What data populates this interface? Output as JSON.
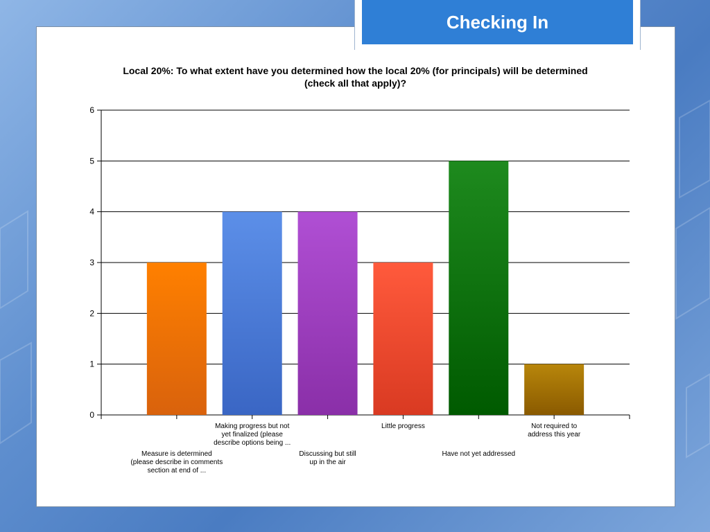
{
  "slide": {
    "title": "Checking In"
  },
  "chart_data": {
    "type": "bar",
    "title": "Local 20%: To what extent have you determined how the local 20% (for principals) will be determined (check all that apply)?",
    "xlabel": "",
    "ylabel": "",
    "ylim": [
      0,
      6
    ],
    "yticks": [
      "0",
      "1",
      "2",
      "3",
      "4",
      "5",
      "6"
    ],
    "grid": true,
    "categories": [
      "Measure is determined (please describe in comments section at end of ...",
      "Making progress but not yet finalized (please describe options being ...",
      "Discussing but still up in the air",
      "Little progress",
      "Have not yet addressed",
      "Not required to address this year"
    ],
    "category_label_lines": [
      [
        "Measure is determined",
        "(please describe in comments",
        "section at end of ..."
      ],
      [
        "Making progress but not",
        "yet finalized (please",
        "describe options being ..."
      ],
      [
        "Discussing but still",
        "up in the air"
      ],
      [
        "Little progress"
      ],
      [
        "Have not yet addressed"
      ],
      [
        "Not required to",
        "address this year"
      ]
    ],
    "values": [
      3,
      4,
      4,
      3,
      5,
      1
    ],
    "colors": [
      [
        "#ff8000",
        "#d9620c"
      ],
      [
        "#5c8fe8",
        "#3a66c4"
      ],
      [
        "#b04fd4",
        "#8a2fa8"
      ],
      [
        "#ff5a3c",
        "#d93a22"
      ],
      [
        "#1e8a1e",
        "#005a00"
      ],
      [
        "#b8860b",
        "#8a5a00"
      ]
    ]
  }
}
